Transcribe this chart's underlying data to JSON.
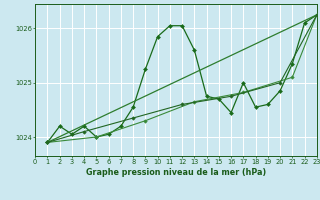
{
  "title": "Graphe pression niveau de la mer (hPa)",
  "background_color": "#cce8f0",
  "grid_color": "#ffffff",
  "xlim": [
    0,
    23
  ],
  "ylim": [
    1023.65,
    1026.45
  ],
  "yticks": [
    1024,
    1025,
    1026
  ],
  "xticks": [
    0,
    1,
    2,
    3,
    4,
    5,
    6,
    7,
    8,
    9,
    10,
    11,
    12,
    13,
    14,
    15,
    16,
    17,
    18,
    19,
    20,
    21,
    22,
    23
  ],
  "series": [
    {
      "x": [
        1,
        2,
        3,
        4,
        5,
        6,
        7,
        8,
        9,
        10,
        11,
        12,
        13,
        14,
        15,
        16,
        17,
        18,
        19,
        20,
        21,
        22,
        23
      ],
      "y": [
        1023.9,
        1024.2,
        1024.05,
        1024.2,
        1024.0,
        1024.05,
        1024.2,
        1024.55,
        1025.25,
        1025.85,
        1026.05,
        1026.05,
        1025.6,
        1024.75,
        1024.7,
        1024.45,
        1025.0,
        1024.55,
        1024.6,
        1024.85,
        1025.35,
        1026.1,
        1026.25
      ],
      "color": "#1a6b1a",
      "lw": 0.9,
      "marker": "D",
      "ms": 2.0
    },
    {
      "x": [
        1,
        23
      ],
      "y": [
        1023.9,
        1026.25
      ],
      "color": "#2e7d2e",
      "lw": 0.9,
      "marker": "D",
      "ms": 2.0
    },
    {
      "x": [
        1,
        5,
        9,
        13,
        17,
        21,
        23
      ],
      "y": [
        1023.9,
        1024.0,
        1024.3,
        1024.65,
        1024.82,
        1025.1,
        1026.25
      ],
      "color": "#3a8a3a",
      "lw": 0.8,
      "marker": "D",
      "ms": 1.8
    },
    {
      "x": [
        1,
        4,
        8,
        12,
        16,
        20,
        23
      ],
      "y": [
        1023.9,
        1024.1,
        1024.35,
        1024.6,
        1024.75,
        1025.0,
        1026.25
      ],
      "color": "#226622",
      "lw": 0.8,
      "marker": "D",
      "ms": 1.8
    }
  ]
}
